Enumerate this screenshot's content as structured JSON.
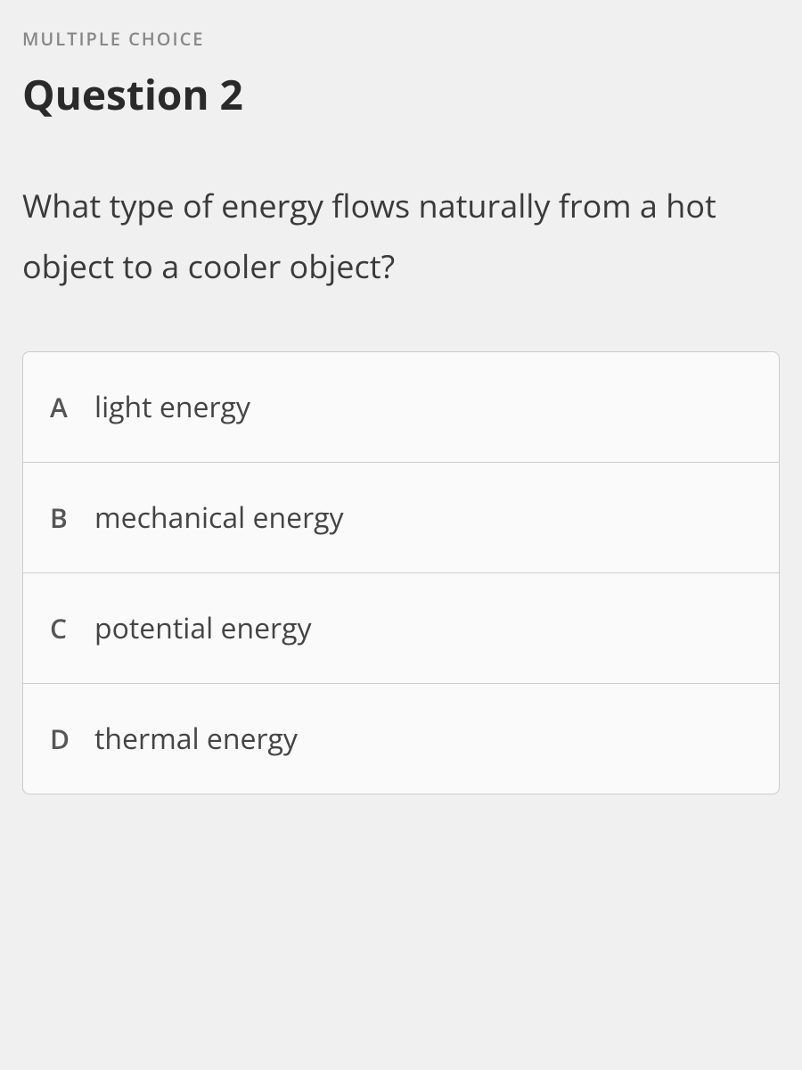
{
  "header": {
    "type_label": "MULTIPLE CHOICE",
    "title": "Question 2"
  },
  "question": {
    "text": "What type of energy flows naturally from a hot object to a cooler object?"
  },
  "options": [
    {
      "letter": "A",
      "text": "light energy"
    },
    {
      "letter": "B",
      "text": "mechanical energy"
    },
    {
      "letter": "C",
      "text": "potential energy"
    },
    {
      "letter": "D",
      "text": "thermal energy"
    }
  ],
  "colors": {
    "background": "#f0f0f0",
    "type_label": "#888888",
    "title": "#2a2a2a",
    "question_text": "#3a3a3a",
    "option_border": "#cccccc",
    "option_bg": "#fafafa",
    "option_letter": "#555555",
    "option_text": "#444444"
  },
  "typography": {
    "type_label_size": 20,
    "title_size": 46,
    "question_size": 36,
    "option_letter_size": 30,
    "option_text_size": 32
  }
}
